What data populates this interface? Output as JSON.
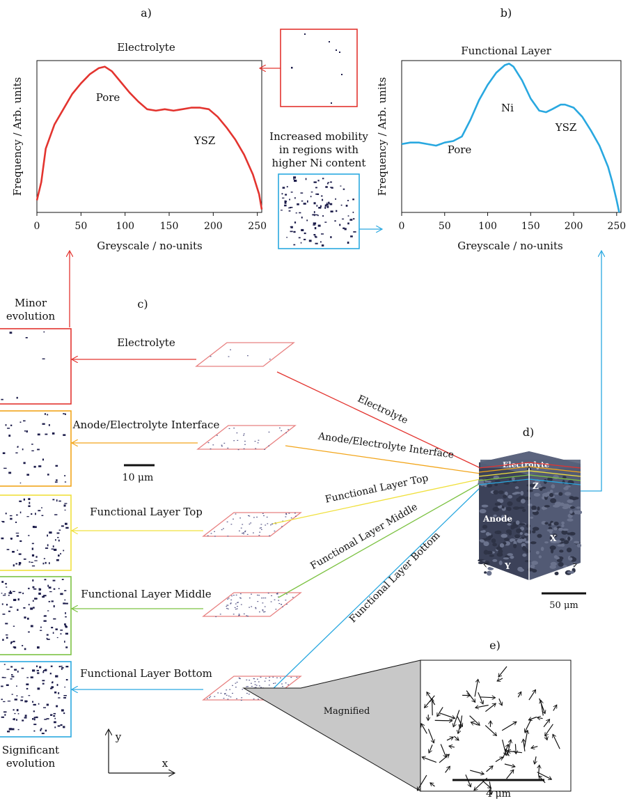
{
  "labels": {
    "a": "a)",
    "b": "b)",
    "c": "c)",
    "d": "d)",
    "e": "e)"
  },
  "colors": {
    "electrolyte": "#e3342f",
    "interface": "#f2a51a",
    "fl_top": "#f0e03c",
    "fl_middle": "#7cc242",
    "fl_bottom": "#29a8e0",
    "tile_border": "#e88080",
    "dots": "#1c1c4a"
  },
  "chart_data": [
    {
      "type": "line",
      "title": "Electrolyte",
      "xlabel": "Greyscale / no-units",
      "ylabel": "Frequency / Arb. units",
      "xlim": [
        0,
        255
      ],
      "xticks": [
        0,
        50,
        100,
        150,
        200,
        250
      ],
      "annotations": [
        "Pore",
        "YSZ"
      ],
      "color": "#e3342f",
      "x": [
        0,
        5,
        10,
        20,
        30,
        40,
        50,
        60,
        70,
        77,
        85,
        95,
        105,
        115,
        125,
        135,
        145,
        155,
        165,
        175,
        185,
        195,
        205,
        215,
        225,
        235,
        245,
        252,
        255
      ],
      "y": [
        0.08,
        0.2,
        0.42,
        0.58,
        0.68,
        0.78,
        0.85,
        0.91,
        0.95,
        0.96,
        0.93,
        0.86,
        0.79,
        0.73,
        0.68,
        0.67,
        0.68,
        0.67,
        0.68,
        0.69,
        0.69,
        0.68,
        0.63,
        0.56,
        0.48,
        0.38,
        0.25,
        0.12,
        0.02
      ]
    },
    {
      "type": "line",
      "title": "Functional Layer",
      "xlabel": "Greyscale / no-units",
      "ylabel": "Frequency / Arb. units",
      "xlim": [
        0,
        255
      ],
      "xticks": [
        0,
        50,
        100,
        150,
        200,
        250
      ],
      "annotations": [
        "Ni",
        "Pore",
        "YSZ"
      ],
      "color": "#29a8e0",
      "x": [
        0,
        10,
        20,
        30,
        40,
        50,
        60,
        70,
        80,
        90,
        100,
        110,
        120,
        125,
        130,
        140,
        150,
        160,
        168,
        175,
        185,
        190,
        200,
        210,
        220,
        230,
        240,
        245,
        250,
        253
      ],
      "y": [
        0.45,
        0.46,
        0.46,
        0.45,
        0.44,
        0.46,
        0.47,
        0.5,
        0.61,
        0.74,
        0.84,
        0.92,
        0.97,
        0.98,
        0.96,
        0.87,
        0.75,
        0.67,
        0.66,
        0.68,
        0.71,
        0.71,
        0.69,
        0.63,
        0.54,
        0.44,
        0.3,
        0.2,
        0.08,
        0.0
      ]
    }
  ],
  "middle": {
    "mobility": [
      "Increased mobility",
      "in regions with",
      "higher Ni content"
    ]
  },
  "panel_c": {
    "minor": [
      "Minor",
      "evolution"
    ],
    "significant": [
      "Significant",
      "evolution"
    ],
    "layers": [
      "Electrolyte",
      "Anode/Electrolyte Interface",
      "Functional Layer Top",
      "Functional Layer Middle",
      "Functional Layer Bottom"
    ],
    "scale": "10 μm",
    "axis_x": "x",
    "axis_y": "y"
  },
  "panel_d": {
    "electrolyte": "Electrolyte",
    "anode": "Anode",
    "z": "Z",
    "x": "X",
    "y": "Y",
    "scale": "50 μm"
  },
  "panel_e": {
    "magnified": "Magnified",
    "scale": "4 μm"
  }
}
